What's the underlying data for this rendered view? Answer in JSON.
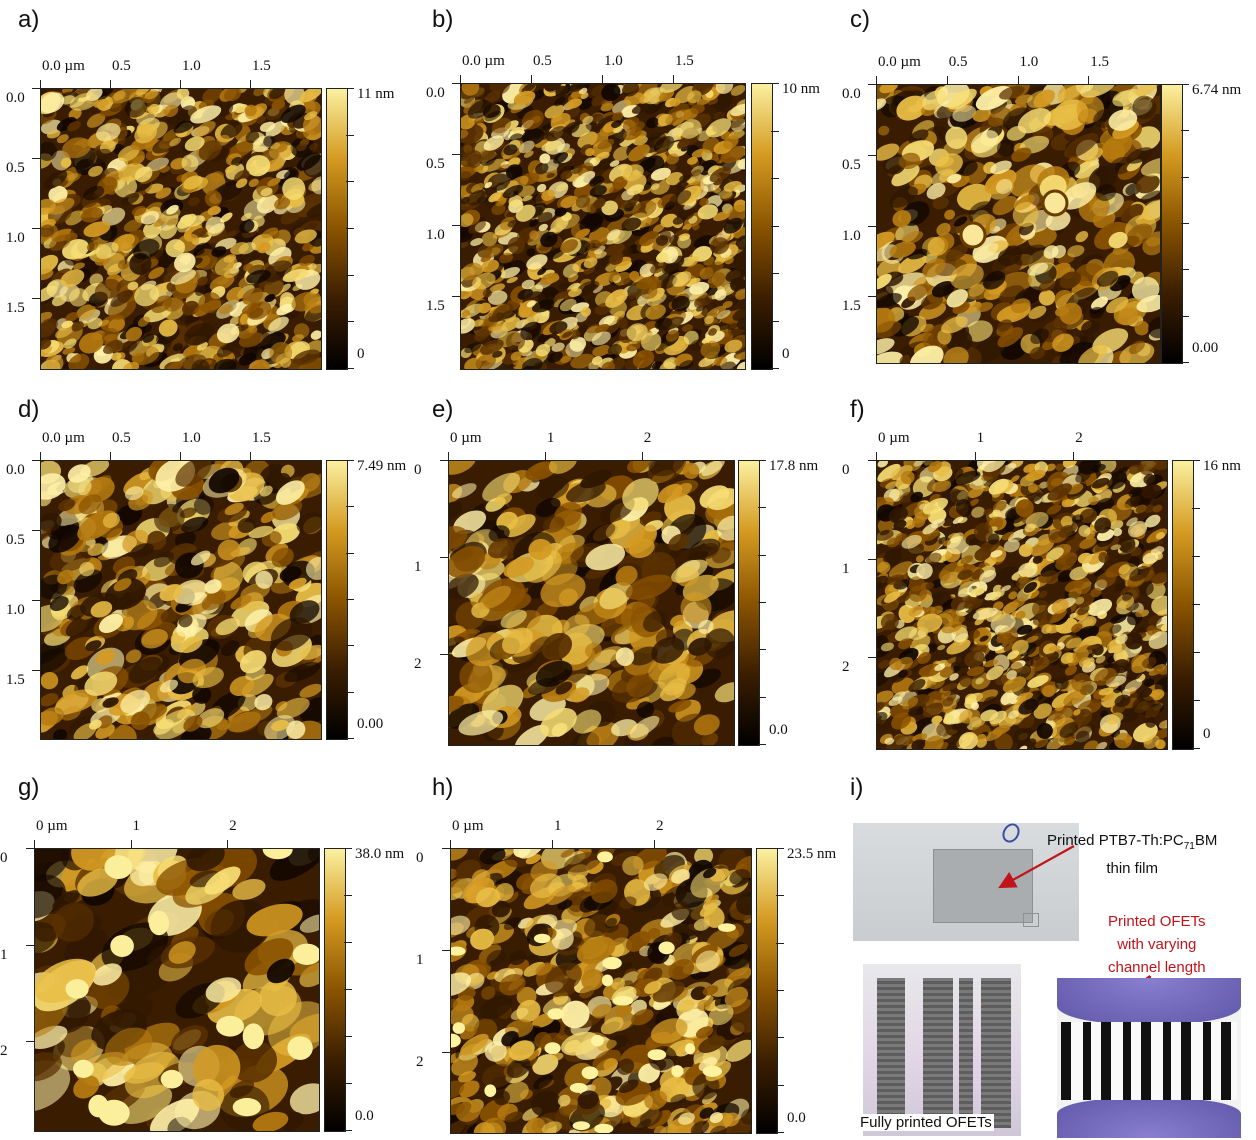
{
  "colors": {
    "accent_red": "#c0141a"
  },
  "panels": [
    {
      "id": "a",
      "letter": "a)",
      "x_ticks": [
        "0.0 µm",
        "0.5",
        "1.0",
        "1.5"
      ],
      "y_ticks": [
        "0.0",
        "0.5",
        "1.0",
        "1.5"
      ],
      "cbar_max": "11 nm",
      "cbar_min": "0",
      "seed": 1,
      "scale": 7
    },
    {
      "id": "b",
      "letter": "b)",
      "x_ticks": [
        "0.0 µm",
        "0.5",
        "1.0",
        "1.5"
      ],
      "y_ticks": [
        "0.0",
        "0.5",
        "1.0",
        "1.5"
      ],
      "cbar_max": "10 nm",
      "cbar_min": "0",
      "seed": 2,
      "scale": 6
    },
    {
      "id": "c",
      "letter": "c)",
      "x_ticks": [
        "0.0 µm",
        "0.5",
        "1.0",
        "1.5"
      ],
      "y_ticks": [
        "0.0",
        "0.5",
        "1.0",
        "1.5"
      ],
      "cbar_max": "6.74 nm",
      "cbar_min": "0.00",
      "seed": 3,
      "scale": 9
    },
    {
      "id": "d",
      "letter": "d)",
      "x_ticks": [
        "0.0 µm",
        "0.5",
        "1.0",
        "1.5"
      ],
      "y_ticks": [
        "0.0",
        "0.5",
        "1.0",
        "1.5"
      ],
      "cbar_max": "7.49 nm",
      "cbar_min": "0.00",
      "seed": 4,
      "scale": 10
    },
    {
      "id": "e",
      "letter": "e)",
      "x_ticks": [
        "0 µm",
        "1",
        "2"
      ],
      "y_ticks": [
        "0",
        "1",
        "2"
      ],
      "cbar_max": "17.8 nm",
      "cbar_min": "0.0",
      "seed": 5,
      "scale": 11
    },
    {
      "id": "f",
      "letter": "f)",
      "x_ticks": [
        "0 µm",
        "1",
        "2"
      ],
      "y_ticks": [
        "0",
        "1",
        "2"
      ],
      "cbar_max": "16 nm",
      "cbar_min": "0",
      "seed": 6,
      "scale": 6
    },
    {
      "id": "g",
      "letter": "g)",
      "x_ticks": [
        "0 µm",
        "1",
        "2"
      ],
      "y_ticks": [
        "0",
        "1",
        "2"
      ],
      "cbar_max": "38.0 nm",
      "cbar_min": "0.0",
      "seed": 7,
      "scale": 16
    },
    {
      "id": "h",
      "letter": "h)",
      "x_ticks": [
        "0 µm",
        "1",
        "2"
      ],
      "y_ticks": [
        "0",
        "1",
        "2"
      ],
      "cbar_max": "23.5 nm",
      "cbar_min": "0.0",
      "seed": 8,
      "scale": 9
    }
  ],
  "panel_i": {
    "letter": "i)",
    "film_caption_1": "Printed PTB7-Th:PC",
    "film_caption_sub": "71",
    "film_caption_2": "BM",
    "film_caption_line2": "thin film",
    "ofet_caption_line1": "Printed OFETs",
    "ofet_caption_line2": "with varying",
    "ofet_caption_line3": "channel length",
    "fully_caption": "Fully printed OFETs"
  }
}
